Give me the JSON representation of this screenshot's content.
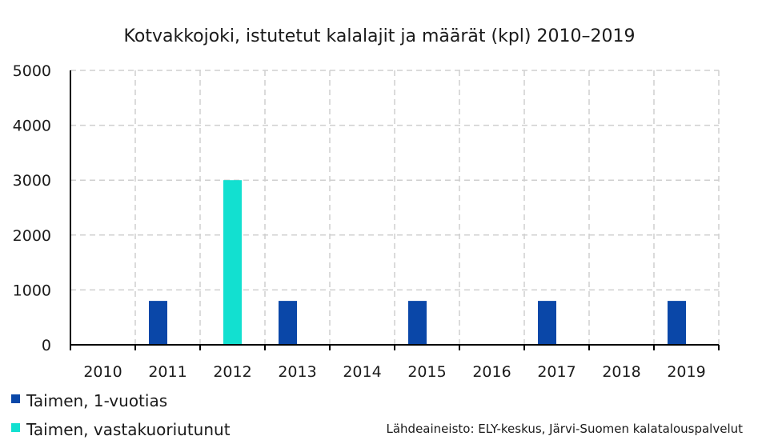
{
  "chart_data": {
    "type": "bar",
    "title": "Kotvakkojoki, istutetut kalalajit ja määrät (kpl) 2010–2019",
    "categories": [
      "2010",
      "2011",
      "2012",
      "2013",
      "2014",
      "2015",
      "2016",
      "2017",
      "2018",
      "2019"
    ],
    "series": [
      {
        "name": "Taimen, 1-vuotias",
        "color": "#0a47a8",
        "values": [
          0,
          800,
          0,
          800,
          0,
          800,
          0,
          800,
          0,
          800
        ]
      },
      {
        "name": "Taimen, vastakuoriutunut",
        "color": "#12e0d0",
        "values": [
          0,
          0,
          3000,
          0,
          0,
          0,
          0,
          0,
          0,
          0
        ]
      }
    ],
    "ylim": [
      0,
      5000
    ],
    "yticks": [
      "0",
      "1000",
      "2000",
      "3000",
      "4000",
      "5000"
    ],
    "grid": true,
    "legend_position": "bottom-left",
    "source": "Lähdeaineisto: ELY-keskus, Järvi-Suomen kalatalouspalvelut"
  }
}
